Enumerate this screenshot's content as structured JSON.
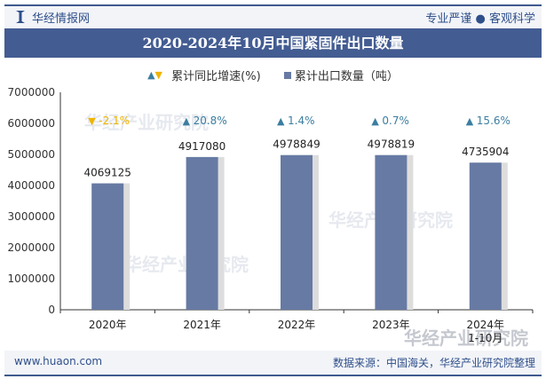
{
  "header": {
    "brand": "华经情报网",
    "slogan": "专业严谨 ● 客观科学"
  },
  "footer": {
    "url": "www.huaon.com",
    "source": "数据来源：中国海关，华经产业研究院整理"
  },
  "watermark": "华经产业研究院",
  "colors": {
    "bar": "#667aa3",
    "up": "#3b7ea1",
    "down": "#f0b400",
    "title_bg": "#435c92"
  },
  "chart_data": {
    "type": "bar",
    "title": "2020-2024年10月中国紧固件出口数量",
    "categories": [
      "2020年",
      "2021年",
      "2022年",
      "2023年",
      "2024年\n1-10月"
    ],
    "series": [
      {
        "name": "累计出口数量（吨）",
        "values": [
          4069125,
          4917080,
          4978849,
          4978819,
          4735904
        ]
      },
      {
        "name": "累计同比增速(%)",
        "values": [
          -2.1,
          20.8,
          1.4,
          0.7,
          15.6
        ]
      }
    ],
    "growth_labels": [
      "-2.1%",
      "20.8%",
      "1.4%",
      "0.7%",
      "15.6%"
    ],
    "ylim": [
      0,
      7000000
    ],
    "yticks": [
      "0",
      "1000000",
      "2000000",
      "3000000",
      "4000000",
      "5000000",
      "6000000",
      "7000000"
    ],
    "legend": [
      "累计同比增速(%)",
      "累计出口数量（吨）"
    ],
    "legend_position": "top"
  }
}
